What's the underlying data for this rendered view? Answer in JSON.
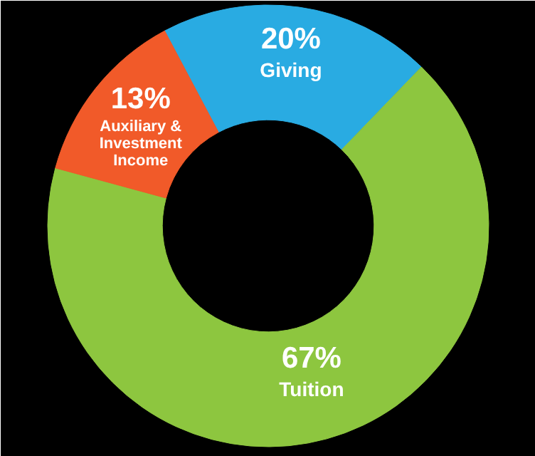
{
  "chart_data": {
    "type": "donut",
    "categories": [
      "Giving",
      "Tuition",
      "Auxiliary & Investment Income"
    ],
    "values": [
      20,
      67,
      13
    ],
    "colors": [
      "#29abe2",
      "#8dc63f",
      "#f15a29"
    ],
    "value_labels": [
      "20%",
      "67%",
      "13%"
    ]
  }
}
